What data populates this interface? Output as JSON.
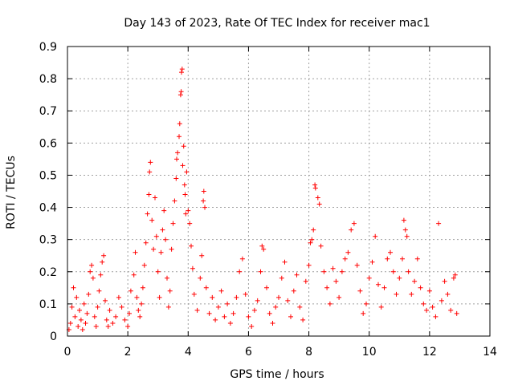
{
  "chart_data": {
    "type": "scatter",
    "title": "Day 143 of 2023, Rate Of TEC Index for receiver mac1",
    "xlabel": "GPS time / hours",
    "ylabel": "ROTI / TECUs",
    "xlim": [
      0,
      14
    ],
    "ylim": [
      0,
      0.9
    ],
    "xticks": [
      "0",
      "2",
      "4",
      "6",
      "8",
      "10",
      "12",
      "14"
    ],
    "yticks": [
      "0",
      "0.1",
      "0.2",
      "0.3",
      "0.4",
      "0.5",
      "0.6",
      "0.7",
      "0.8",
      "0.9"
    ],
    "grid": true,
    "marker": "+",
    "color": "#ff0000",
    "series": [
      {
        "points": [
          [
            0.05,
            0.02
          ],
          [
            0.1,
            0.04
          ],
          [
            0.15,
            0.09
          ],
          [
            0.2,
            0.15
          ],
          [
            0.25,
            0.06
          ],
          [
            0.3,
            0.12
          ],
          [
            0.35,
            0.03
          ],
          [
            0.4,
            0.08
          ],
          [
            0.45,
            0.05
          ],
          [
            0.5,
            0.02
          ],
          [
            0.55,
            0.1
          ],
          [
            0.6,
            0.04
          ],
          [
            0.65,
            0.07
          ],
          [
            0.7,
            0.13
          ],
          [
            0.75,
            0.2
          ],
          [
            0.8,
            0.22
          ],
          [
            0.85,
            0.18
          ],
          [
            0.9,
            0.06
          ],
          [
            0.95,
            0.03
          ],
          [
            1.0,
            0.09
          ],
          [
            1.05,
            0.14
          ],
          [
            1.1,
            0.19
          ],
          [
            1.15,
            0.23
          ],
          [
            1.2,
            0.25
          ],
          [
            1.25,
            0.11
          ],
          [
            1.3,
            0.05
          ],
          [
            1.35,
            0.03
          ],
          [
            1.4,
            0.08
          ],
          [
            1.5,
            0.04
          ],
          [
            1.6,
            0.06
          ],
          [
            1.7,
            0.12
          ],
          [
            1.8,
            0.09
          ],
          [
            1.9,
            0.05
          ],
          [
            2.0,
            0.03
          ],
          [
            2.05,
            0.07
          ],
          [
            2.1,
            0.14
          ],
          [
            2.2,
            0.19
          ],
          [
            2.25,
            0.26
          ],
          [
            2.3,
            0.12
          ],
          [
            2.35,
            0.08
          ],
          [
            2.4,
            0.06
          ],
          [
            2.45,
            0.1
          ],
          [
            2.5,
            0.15
          ],
          [
            2.55,
            0.22
          ],
          [
            2.6,
            0.29
          ],
          [
            2.65,
            0.38
          ],
          [
            2.7,
            0.44
          ],
          [
            2.72,
            0.51
          ],
          [
            2.75,
            0.54
          ],
          [
            2.8,
            0.36
          ],
          [
            2.85,
            0.27
          ],
          [
            2.9,
            0.43
          ],
          [
            2.95,
            0.31
          ],
          [
            3.0,
            0.2
          ],
          [
            3.05,
            0.12
          ],
          [
            3.1,
            0.26
          ],
          [
            3.15,
            0.33
          ],
          [
            3.2,
            0.39
          ],
          [
            3.25,
            0.3
          ],
          [
            3.3,
            0.18
          ],
          [
            3.35,
            0.09
          ],
          [
            3.4,
            0.14
          ],
          [
            3.45,
            0.27
          ],
          [
            3.5,
            0.35
          ],
          [
            3.55,
            0.42
          ],
          [
            3.6,
            0.49
          ],
          [
            3.62,
            0.55
          ],
          [
            3.65,
            0.57
          ],
          [
            3.7,
            0.62
          ],
          [
            3.72,
            0.66
          ],
          [
            3.75,
            0.75
          ],
          [
            3.77,
            0.76
          ],
          [
            3.78,
            0.82
          ],
          [
            3.8,
            0.83
          ],
          [
            3.82,
            0.53
          ],
          [
            3.85,
            0.59
          ],
          [
            3.88,
            0.47
          ],
          [
            3.9,
            0.44
          ],
          [
            3.92,
            0.38
          ],
          [
            3.95,
            0.51
          ],
          [
            4.0,
            0.39
          ],
          [
            4.05,
            0.35
          ],
          [
            4.1,
            0.28
          ],
          [
            4.15,
            0.21
          ],
          [
            4.2,
            0.13
          ],
          [
            4.3,
            0.08
          ],
          [
            4.4,
            0.18
          ],
          [
            4.45,
            0.25
          ],
          [
            4.5,
            0.42
          ],
          [
            4.52,
            0.45
          ],
          [
            4.55,
            0.4
          ],
          [
            4.6,
            0.15
          ],
          [
            4.7,
            0.07
          ],
          [
            4.8,
            0.12
          ],
          [
            4.9,
            0.05
          ],
          [
            5.0,
            0.09
          ],
          [
            5.1,
            0.14
          ],
          [
            5.2,
            0.06
          ],
          [
            5.3,
            0.1
          ],
          [
            5.4,
            0.04
          ],
          [
            5.5,
            0.07
          ],
          [
            5.6,
            0.12
          ],
          [
            5.7,
            0.2
          ],
          [
            5.8,
            0.24
          ],
          [
            5.9,
            0.13
          ],
          [
            6.0,
            0.06
          ],
          [
            6.1,
            0.03
          ],
          [
            6.2,
            0.08
          ],
          [
            6.3,
            0.11
          ],
          [
            6.4,
            0.2
          ],
          [
            6.45,
            0.28
          ],
          [
            6.5,
            0.27
          ],
          [
            6.6,
            0.15
          ],
          [
            6.7,
            0.07
          ],
          [
            6.8,
            0.04
          ],
          [
            6.9,
            0.09
          ],
          [
            7.0,
            0.12
          ],
          [
            7.1,
            0.18
          ],
          [
            7.2,
            0.23
          ],
          [
            7.3,
            0.11
          ],
          [
            7.4,
            0.06
          ],
          [
            7.5,
            0.14
          ],
          [
            7.6,
            0.19
          ],
          [
            7.7,
            0.09
          ],
          [
            7.8,
            0.05
          ],
          [
            7.9,
            0.17
          ],
          [
            8.0,
            0.22
          ],
          [
            8.05,
            0.29
          ],
          [
            8.1,
            0.3
          ],
          [
            8.15,
            0.33
          ],
          [
            8.2,
            0.47
          ],
          [
            8.22,
            0.46
          ],
          [
            8.3,
            0.43
          ],
          [
            8.35,
            0.41
          ],
          [
            8.4,
            0.28
          ],
          [
            8.5,
            0.2
          ],
          [
            8.6,
            0.15
          ],
          [
            8.7,
            0.1
          ],
          [
            8.8,
            0.21
          ],
          [
            8.9,
            0.17
          ],
          [
            9.0,
            0.12
          ],
          [
            9.1,
            0.2
          ],
          [
            9.2,
            0.24
          ],
          [
            9.3,
            0.26
          ],
          [
            9.4,
            0.33
          ],
          [
            9.5,
            0.35
          ],
          [
            9.6,
            0.22
          ],
          [
            9.7,
            0.14
          ],
          [
            9.8,
            0.07
          ],
          [
            9.9,
            0.1
          ],
          [
            10.0,
            0.18
          ],
          [
            10.1,
            0.23
          ],
          [
            10.2,
            0.31
          ],
          [
            10.3,
            0.16
          ],
          [
            10.4,
            0.09
          ],
          [
            10.5,
            0.15
          ],
          [
            10.6,
            0.24
          ],
          [
            10.7,
            0.26
          ],
          [
            10.8,
            0.2
          ],
          [
            10.9,
            0.13
          ],
          [
            11.0,
            0.18
          ],
          [
            11.1,
            0.24
          ],
          [
            11.15,
            0.36
          ],
          [
            11.2,
            0.33
          ],
          [
            11.25,
            0.31
          ],
          [
            11.3,
            0.2
          ],
          [
            11.4,
            0.13
          ],
          [
            11.5,
            0.17
          ],
          [
            11.6,
            0.24
          ],
          [
            11.7,
            0.15
          ],
          [
            11.8,
            0.1
          ],
          [
            11.9,
            0.08
          ],
          [
            12.0,
            0.14
          ],
          [
            12.1,
            0.09
          ],
          [
            12.2,
            0.06
          ],
          [
            12.3,
            0.35
          ],
          [
            12.4,
            0.11
          ],
          [
            12.5,
            0.17
          ],
          [
            12.6,
            0.13
          ],
          [
            12.7,
            0.08
          ],
          [
            12.8,
            0.18
          ],
          [
            12.85,
            0.19
          ],
          [
            12.9,
            0.07
          ]
        ]
      }
    ]
  }
}
